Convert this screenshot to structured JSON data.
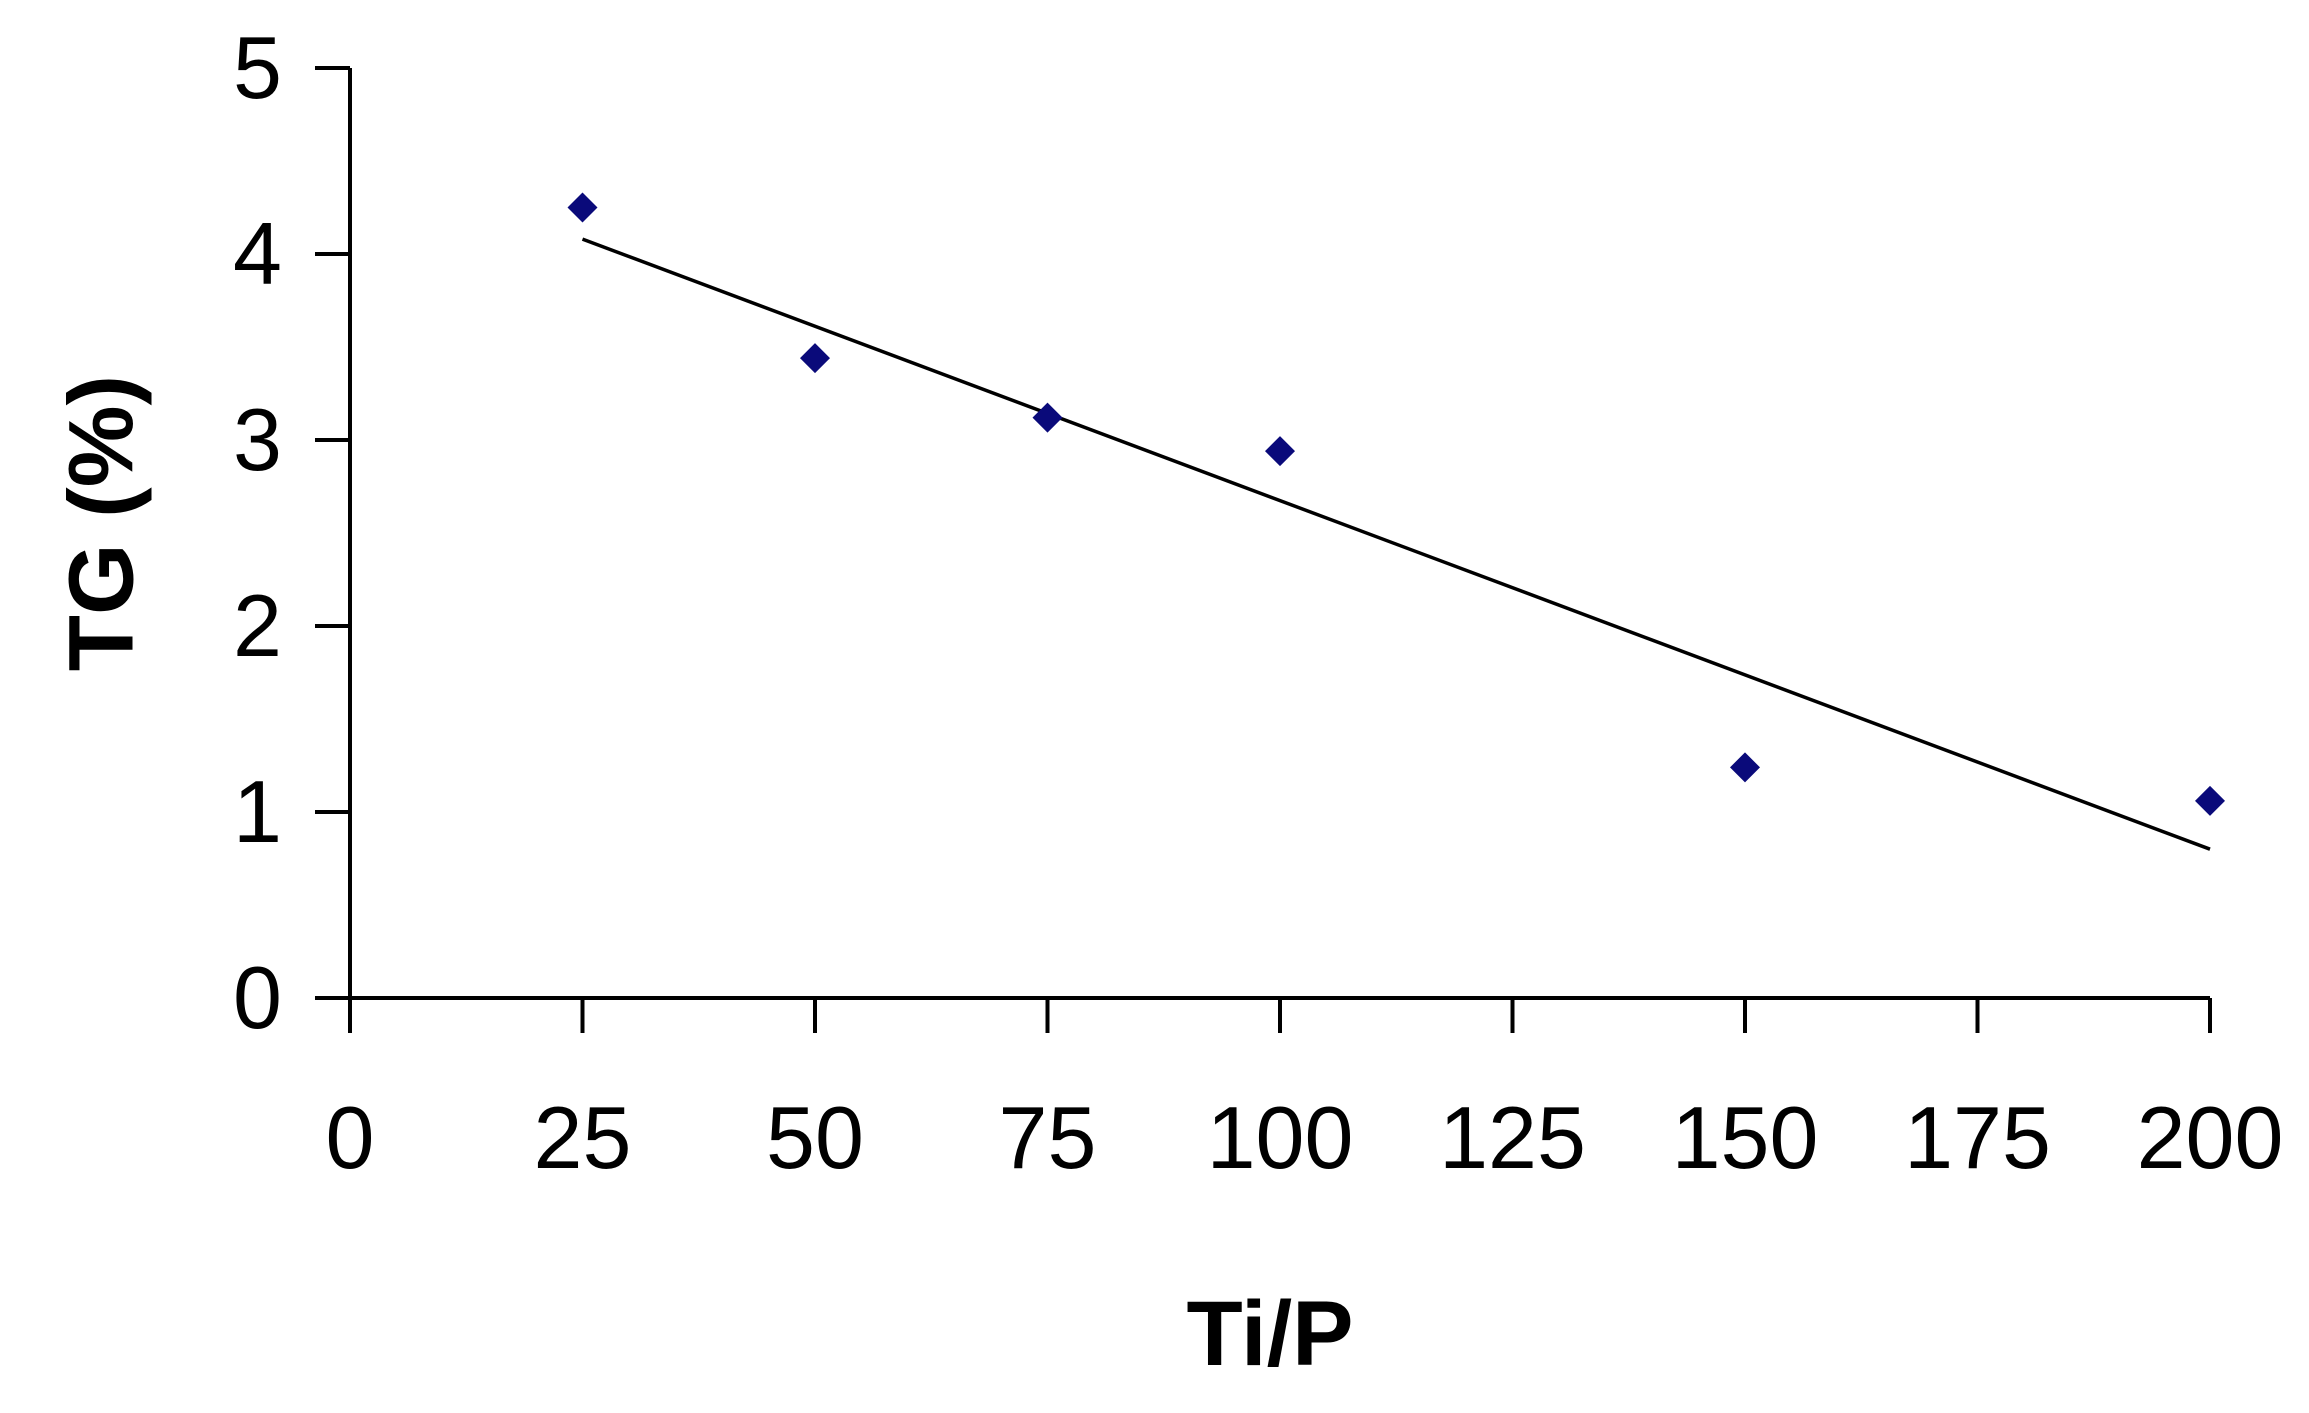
{
  "chart_data": {
    "type": "scatter",
    "title": "",
    "xlabel": "Ti/P",
    "ylabel": "TG (%)",
    "xlim": [
      0,
      200
    ],
    "ylim": [
      0,
      5
    ],
    "xticks": [
      "0",
      "25",
      "50",
      "75",
      "100",
      "125",
      "150",
      "175",
      "200"
    ],
    "yticks": [
      "0",
      "1",
      "2",
      "3",
      "4",
      "5"
    ],
    "grid": false,
    "legend": "none",
    "series": [
      {
        "marker": "diamond",
        "color": "#0a0a7a",
        "points": [
          {
            "x": 25,
            "y": 4.25
          },
          {
            "x": 50,
            "y": 3.44
          },
          {
            "x": 75,
            "y": 3.12
          },
          {
            "x": 100,
            "y": 2.94
          },
          {
            "x": 150,
            "y": 1.24
          },
          {
            "x": 200,
            "y": 1.06
          }
        ]
      }
    ],
    "trendline": {
      "type": "linear",
      "color": "#000000",
      "from": {
        "x": 25,
        "y": 4.08
      },
      "to": {
        "x": 200,
        "y": 0.8
      }
    }
  }
}
